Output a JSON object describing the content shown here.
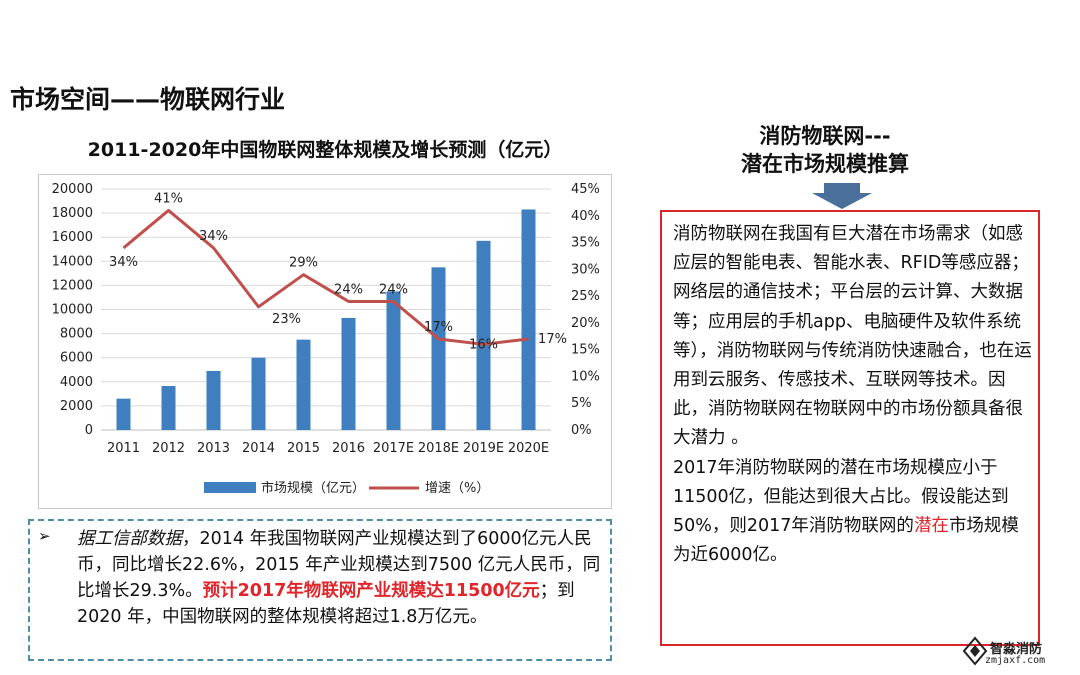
{
  "page_title": "市场空间——物联网行业",
  "side": {
    "heading_line1": "消防物联网---",
    "heading_line2": "潜在市场规模推算",
    "para1": "消防物联网在我国有巨大潜在市场需求（如感应层的智能电表、智能水表、RFID等感应器；网络层的通信技术；平台层的云计算、大数据等；应用层的手机app、电脑硬件及软件系统等），消防物联网与传统消防快速融合，也在运用到云服务、传感技术、互联网等技术。因此，消防物联网在物联网中的市场份额具备很大潜力 。",
    "para2_a": "2017年消防物联网的潜在市场规模应小于11500亿，但能达到很大占比。假设能达到50%，则2017年消防物联网的",
    "para2_red": "潜在",
    "para2_b": "市场规模为近6000亿。"
  },
  "note": {
    "bullet": "➢",
    "source": "据工信部数据",
    "text_a": "，2014 年我国物联网产业规模达到了6000亿元人民币，同比增长22.6%，2015 年产业规模达到7500 亿元人民币，同比增长29.3%。",
    "highlight": "预计2017年物联网产业规模达11500亿元",
    "text_b": "；到2020 年，中国物联网的整体规模将超过1.8万亿元。"
  },
  "logo": {
    "name": "智淼消防",
    "url": "zmjaxf.com"
  },
  "chart_data": {
    "type": "bar+line",
    "title": "2011-2020年中国物联网整体规模及增长预测（亿元）",
    "categories": [
      "2011",
      "2012",
      "2013",
      "2014",
      "2015",
      "2016",
      "2017E",
      "2018E",
      "2019E",
      "2020E"
    ],
    "series": [
      {
        "name": "市场规模（亿元）",
        "type": "bar",
        "axis": "left",
        "values": [
          2600,
          3650,
          4900,
          6000,
          7500,
          9300,
          11500,
          13500,
          15700,
          18300
        ],
        "color": "#3f7fbf"
      },
      {
        "name": "增速（%）",
        "type": "line",
        "axis": "right",
        "values": [
          34,
          41,
          34,
          23,
          29,
          24,
          24,
          17,
          16,
          17
        ],
        "labels": [
          "34%",
          "41%",
          "34%",
          "23%",
          "29%",
          "24%",
          "24%",
          "17%",
          "16%",
          "17%"
        ],
        "color": "#c0504d"
      }
    ],
    "y_left": {
      "min": 0,
      "max": 20000,
      "ticks": [
        "0",
        "2000",
        "4000",
        "6000",
        "8000",
        "10000",
        "12000",
        "14000",
        "16000",
        "18000",
        "20000"
      ]
    },
    "y_right": {
      "min": 0,
      "max": 45,
      "ticks": [
        "0%",
        "5%",
        "10%",
        "15%",
        "20%",
        "25%",
        "30%",
        "35%",
        "40%",
        "45%"
      ]
    },
    "legend": "bottom"
  }
}
